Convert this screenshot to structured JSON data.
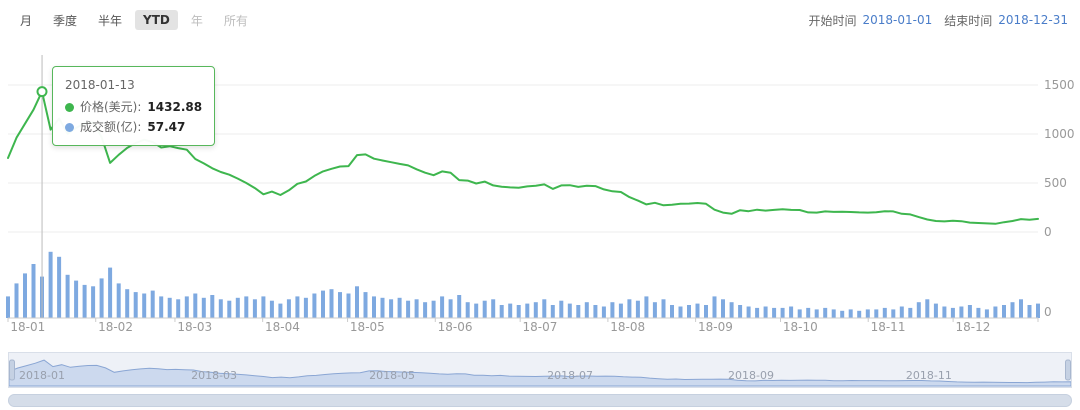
{
  "toolbar": {
    "periods": [
      {
        "label": "月",
        "active": false
      },
      {
        "label": "季度",
        "active": false
      },
      {
        "label": "半年",
        "active": false
      },
      {
        "label": "YTD",
        "active": true
      },
      {
        "label": "年",
        "active": false,
        "muted": true
      },
      {
        "label": "所有",
        "active": false,
        "muted": true
      }
    ],
    "start_label": "开始时间",
    "start_value": "2018-01-01",
    "end_label": "结束时间",
    "end_value": "2018-12-31"
  },
  "tooltip": {
    "index": 4,
    "date": "2018-01-13",
    "items": [
      {
        "label": "价格(美元):",
        "value": "1432.88",
        "color": "#3eb64e"
      },
      {
        "label": "成交额(亿):",
        "value": "57.47",
        "color": "#7ea9e0"
      }
    ]
  },
  "theme": {
    "line_green": "#3eb64e",
    "bar_blue": "#7ea9e0",
    "date_blue": "#4a7dc9",
    "axis_text": "#999999",
    "grid_line": "#eeeeee",
    "axis_line": "#cccccc",
    "navigator_fill": "#ccd9ee",
    "navigator_line": "#8aa6d4"
  },
  "chart_data": {
    "type": "line+bar",
    "year": "2018",
    "series": [
      {
        "name": "价格(美元)",
        "type": "line",
        "color": "#3eb64e"
      },
      {
        "name": "成交额(亿)",
        "type": "bar",
        "color": "#7ea9e0"
      }
    ],
    "dates": [
      "2018-01-01",
      "2018-01-04",
      "2018-01-07",
      "2018-01-10",
      "2018-01-13",
      "2018-01-16",
      "2018-01-19",
      "2018-01-22",
      "2018-01-25",
      "2018-01-28",
      "2018-01-31",
      "2018-02-03",
      "2018-02-06",
      "2018-02-09",
      "2018-02-12",
      "2018-02-15",
      "2018-02-18",
      "2018-02-21",
      "2018-02-24",
      "2018-02-27",
      "2018-03-02",
      "2018-03-05",
      "2018-03-08",
      "2018-03-11",
      "2018-03-14",
      "2018-03-17",
      "2018-03-20",
      "2018-03-23",
      "2018-03-26",
      "2018-03-29",
      "2018-04-01",
      "2018-04-04",
      "2018-04-07",
      "2018-04-10",
      "2018-04-13",
      "2018-04-16",
      "2018-04-19",
      "2018-04-22",
      "2018-04-25",
      "2018-04-28",
      "2018-05-01",
      "2018-05-04",
      "2018-05-07",
      "2018-05-10",
      "2018-05-13",
      "2018-05-16",
      "2018-05-19",
      "2018-05-22",
      "2018-05-25",
      "2018-05-28",
      "2018-05-31",
      "2018-06-03",
      "2018-06-06",
      "2018-06-09",
      "2018-06-12",
      "2018-06-15",
      "2018-06-18",
      "2018-06-21",
      "2018-06-24",
      "2018-06-27",
      "2018-06-30",
      "2018-07-03",
      "2018-07-06",
      "2018-07-09",
      "2018-07-12",
      "2018-07-15",
      "2018-07-18",
      "2018-07-21",
      "2018-07-24",
      "2018-07-27",
      "2018-07-30",
      "2018-08-02",
      "2018-08-05",
      "2018-08-08",
      "2018-08-11",
      "2018-08-14",
      "2018-08-17",
      "2018-08-20",
      "2018-08-23",
      "2018-08-26",
      "2018-08-29",
      "2018-09-01",
      "2018-09-04",
      "2018-09-07",
      "2018-09-10",
      "2018-09-13",
      "2018-09-16",
      "2018-09-19",
      "2018-09-22",
      "2018-09-25",
      "2018-09-28",
      "2018-10-01",
      "2018-10-04",
      "2018-10-07",
      "2018-10-10",
      "2018-10-13",
      "2018-10-16",
      "2018-10-19",
      "2018-10-22",
      "2018-10-25",
      "2018-10-28",
      "2018-10-31",
      "2018-11-03",
      "2018-11-06",
      "2018-11-09",
      "2018-11-12",
      "2018-11-15",
      "2018-11-18",
      "2018-11-21",
      "2018-11-24",
      "2018-11-27",
      "2018-11-30",
      "2018-12-03",
      "2018-12-06",
      "2018-12-09",
      "2018-12-12",
      "2018-12-15",
      "2018-12-18",
      "2018-12-21",
      "2018-12-24",
      "2018-12-27",
      "2018-12-30"
    ],
    "prices": [
      755,
      962,
      1105,
      1248,
      1432.88,
      1045,
      1158,
      1002,
      1062,
      1108,
      1118,
      968,
      705,
      788,
      858,
      908,
      942,
      918,
      862,
      876,
      856,
      840,
      745,
      700,
      650,
      612,
      585,
      545,
      500,
      448,
      385,
      412,
      378,
      425,
      492,
      515,
      572,
      618,
      645,
      668,
      672,
      785,
      792,
      748,
      730,
      712,
      695,
      680,
      640,
      605,
      580,
      618,
      605,
      530,
      524,
      495,
      514,
      476,
      462,
      455,
      452,
      465,
      472,
      486,
      440,
      475,
      478,
      460,
      471,
      468,
      435,
      415,
      408,
      356,
      320,
      282,
      298,
      272,
      278,
      288,
      290,
      296,
      288,
      228,
      198,
      186,
      222,
      212,
      228,
      218,
      226,
      232,
      226,
      224,
      200,
      198,
      210,
      205,
      206,
      204,
      200,
      198,
      202,
      212,
      210,
      186,
      180,
      152,
      128,
      112,
      108,
      115,
      110,
      96,
      92,
      88,
      84,
      100,
      112,
      132,
      126,
      134
    ],
    "volumes": [
      30,
      48,
      62,
      75,
      57.47,
      92,
      85,
      60,
      52,
      46,
      44,
      55,
      70,
      48,
      40,
      36,
      34,
      38,
      30,
      28,
      26,
      30,
      34,
      28,
      32,
      26,
      24,
      28,
      30,
      26,
      30,
      24,
      20,
      26,
      30,
      28,
      34,
      38,
      40,
      36,
      34,
      44,
      36,
      30,
      28,
      26,
      28,
      24,
      26,
      22,
      24,
      30,
      26,
      32,
      22,
      20,
      24,
      26,
      18,
      20,
      18,
      20,
      22,
      26,
      18,
      24,
      20,
      18,
      22,
      18,
      16,
      22,
      20,
      26,
      24,
      30,
      22,
      26,
      18,
      16,
      18,
      20,
      18,
      30,
      26,
      22,
      18,
      16,
      14,
      16,
      14,
      14,
      16,
      12,
      14,
      12,
      14,
      12,
      10,
      12,
      10,
      12,
      12,
      14,
      12,
      16,
      14,
      22,
      26,
      20,
      16,
      14,
      16,
      18,
      14,
      12,
      16,
      18,
      22,
      26,
      18,
      20
    ],
    "price_axis": {
      "ticks": [
        1500,
        1000,
        500,
        0
      ],
      "position": "right"
    },
    "volume_axis": {
      "ticks": [
        0
      ],
      "position": "right"
    },
    "x_tick_labels": [
      "18-01",
      "18-02",
      "18-03",
      "18-04",
      "18-05",
      "18-06",
      "18-07",
      "18-08",
      "18-09",
      "18-10",
      "18-11",
      "18-12"
    ],
    "navigator_labels": [
      "2018-01",
      "2018-03",
      "2018-05",
      "2018-07",
      "2018-09",
      "2018-11"
    ]
  }
}
